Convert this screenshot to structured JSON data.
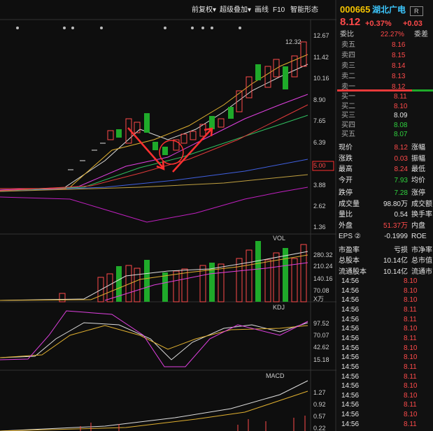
{
  "toolbar": {
    "items": [
      "前复权▾",
      "超级叠加▾",
      "画线",
      "F10",
      "智能形态"
    ]
  },
  "main_chart": {
    "axis_labels": [
      "12.67",
      "11.42",
      "10.16",
      "8.90",
      "7.65",
      "6.39",
      "5.00",
      "3.88",
      "2.62",
      "1.36"
    ],
    "high_label": "12.32"
  },
  "vol_chart": {
    "title": "VOL",
    "axis_labels": [
      "280.32",
      "210.24",
      "140.16",
      "70.08",
      "X万"
    ]
  },
  "kdj_chart": {
    "title": "KDJ",
    "axis_labels": [
      "97.52",
      "70.07",
      "42.62",
      "15.18"
    ]
  },
  "macd_chart": {
    "title": "MACD",
    "axis_labels": [
      "1.27",
      "0.92",
      "0.57",
      "0.22"
    ]
  },
  "quote": {
    "code": "000665",
    "name": "湖北广电",
    "badge": "R",
    "price": "8.12",
    "change_pct": "+0.37%",
    "change": "+0.03",
    "ratio_label": "委比",
    "ratio": "22.27%",
    "diff_label": "委差"
  },
  "order_book": {
    "sell": [
      {
        "label": "卖五",
        "price": "8.16",
        "color": "red"
      },
      {
        "label": "卖四",
        "price": "8.15",
        "color": "red"
      },
      {
        "label": "卖三",
        "price": "8.14",
        "color": "red"
      },
      {
        "label": "卖二",
        "price": "8.13",
        "color": "red"
      },
      {
        "label": "卖一",
        "price": "8.12",
        "color": "red"
      }
    ],
    "buy": [
      {
        "label": "买一",
        "price": "8.11",
        "color": "red"
      },
      {
        "label": "买二",
        "price": "8.10",
        "color": "red"
      },
      {
        "label": "买三",
        "price": "8.09",
        "color": "white"
      },
      {
        "label": "买四",
        "price": "8.08",
        "color": "green"
      },
      {
        "label": "买五",
        "price": "8.07",
        "color": "green"
      }
    ]
  },
  "stats": {
    "rows": [
      {
        "label": "现价",
        "value": "8.12",
        "label2": "涨幅",
        "color": "red"
      },
      {
        "label": "涨跌",
        "value": "0.03",
        "label2": "振幅",
        "color": "red"
      },
      {
        "label": "最高",
        "value": "8.24",
        "label2": "最低",
        "color": "red"
      },
      {
        "label": "今开",
        "value": "7.93",
        "label2": "均价",
        "color": "green"
      },
      {
        "label": "跌停",
        "value": "7.28",
        "label2": "涨停",
        "color": "green"
      },
      {
        "label": "成交量",
        "value": "98.80万",
        "label2": "成交额",
        "color": "white"
      },
      {
        "label": "量比",
        "value": "0.54",
        "label2": "换手率",
        "color": "white"
      },
      {
        "label": "外盘",
        "value": "51.37万",
        "label2": "内盘",
        "color": "red"
      },
      {
        "label": "EPS ②",
        "value": "-0.1999",
        "label2": "ROE",
        "color": "white"
      },
      {
        "label": "市盈率",
        "value": "亏损",
        "label2": "市净率",
        "color": "white"
      },
      {
        "label": "总股本",
        "value": "10.14亿",
        "label2": "总市值",
        "color": "white"
      },
      {
        "label": "流通股本",
        "value": "10.14亿",
        "label2": "流通市",
        "color": "white"
      }
    ]
  },
  "trades": {
    "rows": [
      {
        "time": "14:56",
        "price": "8.10"
      },
      {
        "time": "14:56",
        "price": "8.10"
      },
      {
        "time": "14:56",
        "price": "8.10"
      },
      {
        "time": "14:56",
        "price": "8.11"
      },
      {
        "time": "14:56",
        "price": "8.11"
      },
      {
        "time": "14:56",
        "price": "8.10"
      },
      {
        "time": "14:56",
        "price": "8.11"
      },
      {
        "time": "14:56",
        "price": "8.10"
      },
      {
        "time": "14:56",
        "price": "8.10"
      },
      {
        "time": "14:56",
        "price": "8.11"
      },
      {
        "time": "14:56",
        "price": "8.11"
      },
      {
        "time": "14:56",
        "price": "8.10"
      },
      {
        "time": "14:56",
        "price": "8.10"
      },
      {
        "time": "14:56",
        "price": "8.11"
      },
      {
        "time": "14:56",
        "price": "8.10"
      },
      {
        "time": "14:56",
        "price": "8.11"
      }
    ]
  }
}
